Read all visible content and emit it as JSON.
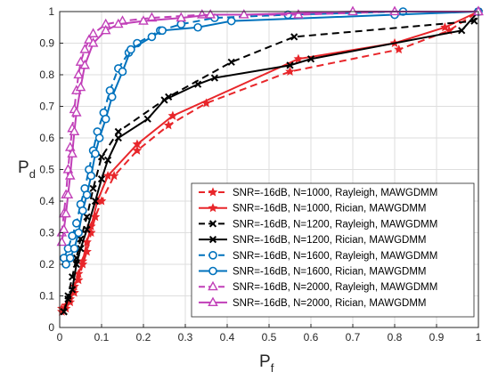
{
  "chart_data": {
    "type": "line",
    "xlabel": "P",
    "xlabel_sub": "f",
    "ylabel": "P",
    "ylabel_sub": "d",
    "xlim": [
      0,
      1
    ],
    "ylim": [
      0,
      1
    ],
    "xticks": [
      "0",
      "0.1",
      "0.2",
      "0.3",
      "0.4",
      "0.5",
      "0.6",
      "0.7",
      "0.8",
      "0.9",
      "1"
    ],
    "yticks": [
      "0",
      "0.1",
      "0.2",
      "0.3",
      "0.4",
      "0.5",
      "0.6",
      "0.7",
      "0.8",
      "0.9",
      "1"
    ],
    "grid": true,
    "legend_position": "bottom-right",
    "series": [
      {
        "name": "SNR=-16dB, N=1000, Rayleigh, MAWGDMM",
        "color": "#e8262a",
        "dash": "dashed",
        "marker": "star",
        "x": [
          0.005,
          0.015,
          0.025,
          0.035,
          0.045,
          0.055,
          0.065,
          0.075,
          0.085,
          0.1,
          0.13,
          0.185,
          0.26,
          0.35,
          0.55,
          0.81,
          0.93,
          1.0
        ],
        "y": [
          0.05,
          0.06,
          0.08,
          0.11,
          0.15,
          0.2,
          0.24,
          0.3,
          0.35,
          0.4,
          0.48,
          0.56,
          0.64,
          0.71,
          0.81,
          0.88,
          0.94,
          1.0
        ]
      },
      {
        "name": "SNR=-16dB, N=1000, Rician, MAWGDMM",
        "color": "#e8262a",
        "dash": "solid",
        "marker": "star",
        "x": [
          0.005,
          0.015,
          0.025,
          0.035,
          0.045,
          0.055,
          0.065,
          0.075,
          0.09,
          0.115,
          0.185,
          0.27,
          0.57,
          0.8,
          0.92,
          1.0
        ],
        "y": [
          0.06,
          0.07,
          0.09,
          0.13,
          0.17,
          0.21,
          0.27,
          0.32,
          0.4,
          0.48,
          0.58,
          0.67,
          0.85,
          0.9,
          0.95,
          1.0
        ]
      },
      {
        "name": "SNR=-16dB, N=1200, Rayleigh, MAWGDMM",
        "color": "#000000",
        "dash": "dashed",
        "marker": "x",
        "x": [
          0.01,
          0.02,
          0.03,
          0.04,
          0.05,
          0.065,
          0.08,
          0.1,
          0.14,
          0.26,
          0.41,
          0.56,
          0.99,
          1.0
        ],
        "y": [
          0.05,
          0.1,
          0.16,
          0.22,
          0.28,
          0.35,
          0.44,
          0.54,
          0.62,
          0.73,
          0.84,
          0.92,
          0.97,
          1.0
        ]
      },
      {
        "name": "SNR=-16dB, N=1200, Rician, MAWGDMM",
        "color": "#000000",
        "dash": "solid",
        "marker": "x",
        "x": [
          0.01,
          0.02,
          0.03,
          0.04,
          0.05,
          0.065,
          0.085,
          0.1,
          0.115,
          0.14,
          0.21,
          0.25,
          0.33,
          0.37,
          0.55,
          0.6,
          0.96,
          1.0
        ],
        "y": [
          0.05,
          0.09,
          0.12,
          0.2,
          0.25,
          0.31,
          0.4,
          0.47,
          0.53,
          0.6,
          0.66,
          0.72,
          0.77,
          0.79,
          0.83,
          0.85,
          0.94,
          1.0
        ]
      },
      {
        "name": "SNR=-16dB, N=1600, Rayleigh, MAWGDMM",
        "color": "#0072bd",
        "dash": "dashed",
        "marker": "circle",
        "x": [
          0.01,
          0.02,
          0.03,
          0.04,
          0.05,
          0.06,
          0.07,
          0.08,
          0.09,
          0.105,
          0.12,
          0.14,
          0.165,
          0.185,
          0.24,
          0.29,
          0.37,
          0.545,
          0.82,
          1.0
        ],
        "y": [
          0.22,
          0.25,
          0.29,
          0.33,
          0.39,
          0.44,
          0.5,
          0.56,
          0.62,
          0.68,
          0.75,
          0.82,
          0.87,
          0.9,
          0.94,
          0.96,
          0.98,
          0.99,
          1.0,
          1.0
        ]
      },
      {
        "name": "SNR=-16dB, N=1600, Rician, MAWGDMM",
        "color": "#0072bd",
        "dash": "solid",
        "marker": "circle",
        "x": [
          0.015,
          0.025,
          0.035,
          0.045,
          0.055,
          0.065,
          0.075,
          0.085,
          0.095,
          0.11,
          0.125,
          0.15,
          0.17,
          0.22,
          0.245,
          0.33,
          0.41,
          0.8,
          1.0
        ],
        "y": [
          0.2,
          0.22,
          0.25,
          0.3,
          0.37,
          0.42,
          0.48,
          0.55,
          0.6,
          0.66,
          0.73,
          0.81,
          0.88,
          0.92,
          0.94,
          0.95,
          0.97,
          0.99,
          1.0
        ]
      },
      {
        "name": "SNR=-16dB, N=2000, Rayleigh, MAWGDMM",
        "color": "#c13fb8",
        "dash": "dashed",
        "marker": "triangle",
        "x": [
          0.005,
          0.01,
          0.015,
          0.02,
          0.025,
          0.03,
          0.035,
          0.04,
          0.045,
          0.05,
          0.06,
          0.07,
          0.08,
          0.11,
          0.15,
          0.22,
          0.34,
          0.57,
          0.8,
          1.0
        ],
        "y": [
          0.3,
          0.36,
          0.42,
          0.5,
          0.57,
          0.63,
          0.69,
          0.75,
          0.8,
          0.84,
          0.88,
          0.91,
          0.93,
          0.96,
          0.97,
          0.98,
          0.99,
          0.99,
          1.0,
          1.0
        ]
      },
      {
        "name": "SNR=-16dB, N=2000, Rician, MAWGDMM",
        "color": "#c13fb8",
        "dash": "solid",
        "marker": "triangle",
        "x": [
          0.005,
          0.01,
          0.015,
          0.02,
          0.025,
          0.03,
          0.035,
          0.04,
          0.05,
          0.06,
          0.08,
          0.11,
          0.14,
          0.2,
          0.29,
          0.36,
          0.44,
          0.7,
          1.0
        ],
        "y": [
          0.27,
          0.31,
          0.36,
          0.42,
          0.48,
          0.55,
          0.62,
          0.68,
          0.76,
          0.83,
          0.9,
          0.94,
          0.96,
          0.97,
          0.98,
          0.99,
          0.99,
          1.0,
          1.0
        ]
      }
    ]
  }
}
